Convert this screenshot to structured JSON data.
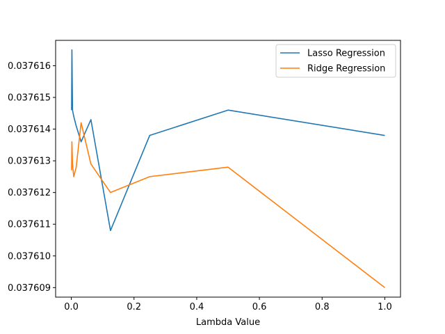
{
  "chart_data": {
    "type": "line",
    "title": "",
    "xlabel": "Lambda Value",
    "ylabel": "",
    "xlim": [
      -0.05,
      1.05
    ],
    "ylim": [
      0.0376087,
      0.0376168
    ],
    "x_ticks": [
      0.0,
      0.2,
      0.4,
      0.6,
      0.8,
      1.0
    ],
    "x_tick_labels": [
      "0.0",
      "0.2",
      "0.4",
      "0.6",
      "0.8",
      "1.0"
    ],
    "y_ticks": [
      0.037609,
      0.03761,
      0.037611,
      0.037612,
      0.037613,
      0.037614,
      0.037615,
      0.037616
    ],
    "y_tick_labels": [
      "0.037609",
      "0.037610",
      "0.037611",
      "0.037612",
      "0.037613",
      "0.037614",
      "0.037615",
      "0.037616"
    ],
    "grid": false,
    "legend_position": "top-right",
    "series": [
      {
        "name": "Lasso Regression",
        "color": "#1f77b4",
        "x": [
          0.000977,
          0.001953,
          0.003906,
          0.007813,
          0.015625,
          0.03125,
          0.0625,
          0.125,
          0.25,
          0.5,
          1.0
        ],
        "y": [
          0.0376146,
          0.0376165,
          0.0376146,
          0.0376144,
          0.0376141,
          0.0376136,
          0.0376143,
          0.0376108,
          0.0376138,
          0.0376146,
          0.0376138
        ]
      },
      {
        "name": "Ridge Regression",
        "color": "#ff7f0e",
        "x": [
          0.000977,
          0.001953,
          0.003906,
          0.007813,
          0.015625,
          0.03125,
          0.0625,
          0.125,
          0.25,
          0.5,
          1.0
        ],
        "y": [
          0.0376127,
          0.0376136,
          0.0376129,
          0.0376125,
          0.0376128,
          0.0376142,
          0.0376129,
          0.037612,
          0.0376125,
          0.0376128,
          0.037609
        ]
      }
    ]
  }
}
